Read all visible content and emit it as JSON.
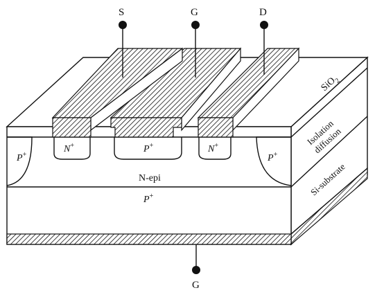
{
  "terminals": {
    "source": "S",
    "gate": "G",
    "drain": "D",
    "bottom_gate": "G"
  },
  "layers": {
    "oxide_base": "SiO",
    "oxide_sub": "2",
    "isolation_line1": "Isolation",
    "isolation_line2": "diffusion",
    "substrate": "Si-substrate",
    "epi": "N-epi",
    "p_plus_base": "P",
    "n_plus_base": "N",
    "plus_sup": "+"
  },
  "colors": {
    "ink": "#111111",
    "background": "#ffffff"
  }
}
